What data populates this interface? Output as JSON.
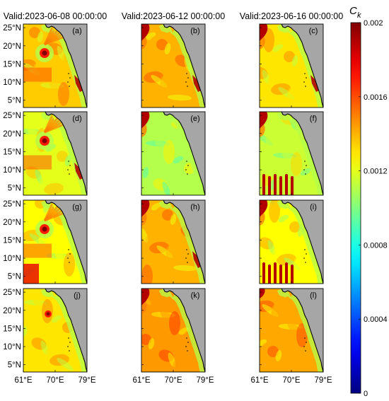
{
  "columns": [
    {
      "title": "Valid:2023-06-08 00:00:00"
    },
    {
      "title": "Valid:2023-06-12 00:00:00"
    },
    {
      "title": "Valid:2023-06-16 00:00:00"
    }
  ],
  "panels": [
    {
      "label": "(a)",
      "base": 0.00135,
      "features": [
        "cyclone",
        "coastal_red"
      ]
    },
    {
      "label": "(b)",
      "base": 0.0014,
      "features": [
        "nw_red",
        "coastal_red"
      ]
    },
    {
      "label": "(c)",
      "base": 0.0013,
      "features": [
        "nw_red",
        "coastal_red"
      ]
    },
    {
      "label": "(d)",
      "base": 0.0012,
      "features": [
        "cyclone",
        "coastal_red"
      ]
    },
    {
      "label": "(e)",
      "base": 0.0011,
      "features": [
        "nw_red"
      ]
    },
    {
      "label": "(f)",
      "base": 0.00115,
      "features": [
        "nw_red",
        "sw_stripes"
      ]
    },
    {
      "label": "(g)",
      "base": 0.00125,
      "features": [
        "cyclone",
        "sw_red"
      ]
    },
    {
      "label": "(h)",
      "base": 0.0014,
      "features": [
        "nw_red",
        "coastal_red"
      ]
    },
    {
      "label": "(i)",
      "base": 0.00125,
      "features": [
        "nw_red",
        "sw_stripes"
      ]
    },
    {
      "label": "(j)",
      "base": 0.0013,
      "features": [
        "small_cyclone"
      ]
    },
    {
      "label": "(k)",
      "base": 0.00145,
      "features": [
        "nw_red"
      ]
    },
    {
      "label": "(l)",
      "base": 0.00142,
      "features": [
        "nw_small"
      ]
    }
  ],
  "axes": {
    "lat_ticks": [
      "25°N",
      "20°N",
      "15°N",
      "10°N",
      "5°N"
    ],
    "lat_values": [
      25,
      20,
      15,
      10,
      5
    ],
    "lon_ticks": [
      "61°E",
      "70°E",
      "79°E"
    ],
    "lon_values": [
      61,
      70,
      79
    ],
    "lat_range": [
      3,
      26
    ],
    "lon_range": [
      61,
      79
    ]
  },
  "colorbar": {
    "label_main": "C",
    "label_sub": "k",
    "range": [
      0,
      0.002
    ],
    "ticks": [
      {
        "value": 0.002,
        "label": "0.002"
      },
      {
        "value": 0.0016,
        "label": "0.0016"
      },
      {
        "value": 0.0012,
        "label": "0.0012"
      },
      {
        "value": 0.0008,
        "label": "0.0008"
      },
      {
        "value": 0.0004,
        "label": "0.0004"
      },
      {
        "value": 0,
        "label": "0"
      }
    ],
    "colormap": "jet"
  },
  "colors": {
    "land": "#a6a6a6",
    "coast": "#000000"
  }
}
